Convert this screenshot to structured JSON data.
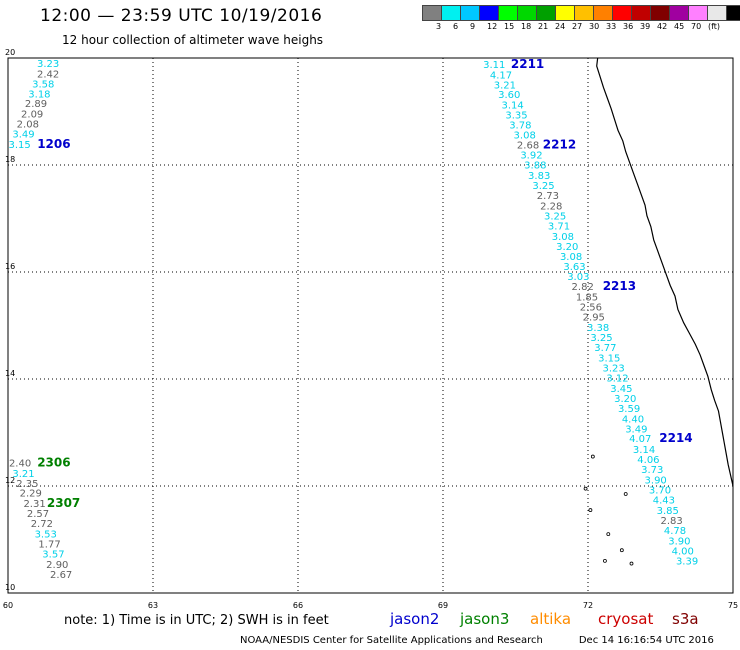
{
  "header": {
    "title": "12:00 — 23:59 UTC 10/19/2016",
    "subtitle": "12 hour collection of altimeter wave heighs"
  },
  "color_scale": {
    "colors": [
      "#808080",
      "#00f0f0",
      "#00c8ff",
      "#0000ff",
      "#00ff00",
      "#00d800",
      "#00a000",
      "#ffff00",
      "#ffc000",
      "#ff8000",
      "#ff0000",
      "#c00000",
      "#800000",
      "#a000a0",
      "#ff80ff",
      "#e8e8e8",
      "#000000"
    ],
    "labels": [
      "3",
      "6",
      "9",
      "12",
      "15",
      "18",
      "21",
      "24",
      "27",
      "30",
      "33",
      "36",
      "39",
      "42",
      "45",
      "70",
      "(ft)"
    ]
  },
  "map": {
    "x_range": [
      60,
      75
    ],
    "y_range": [
      10,
      20
    ],
    "x_ticks": [
      "60",
      "63",
      "66",
      "69",
      "72",
      "75"
    ],
    "y_ticks": [
      "20",
      "18",
      "16",
      "14",
      "12",
      "10"
    ],
    "grid_style": "dotted",
    "coastline": "black outline along right side of map"
  },
  "tracks": [
    {
      "pass": "1206",
      "satellite": "jason2",
      "pass_color": "#0000cc"
    },
    {
      "pass": "2211",
      "satellite": "jason2",
      "pass_color": "#0000cc"
    },
    {
      "pass": "2212",
      "satellite": "jason2",
      "pass_color": "#0000cc"
    },
    {
      "pass": "2213",
      "satellite": "jason2",
      "pass_color": "#0000cc"
    },
    {
      "pass": "2214",
      "satellite": "jason2",
      "pass_color": "#0000cc"
    },
    {
      "pass": "2306",
      "satellite": "jason3",
      "pass_color": "#008000"
    },
    {
      "pass": "2307",
      "satellite": "jason3",
      "pass_color": "#008000"
    }
  ],
  "wave_heights": [
    {
      "value": "3.23",
      "lon": 60.83,
      "lat": 19.83,
      "color": "#00d0e8"
    },
    {
      "value": "2.42",
      "lon": 60.83,
      "lat": 19.64,
      "color": "#606060"
    },
    {
      "value": "3.58",
      "lon": 60.73,
      "lat": 19.45,
      "color": "#00d0e8"
    },
    {
      "value": "3.18",
      "lon": 60.65,
      "lat": 19.26,
      "color": "#00d0e8"
    },
    {
      "value": "2.89",
      "lon": 60.58,
      "lat": 19.08,
      "color": "#606060"
    },
    {
      "value": "2.09",
      "lon": 60.5,
      "lat": 18.89,
      "color": "#606060"
    },
    {
      "value": "2.08",
      "lon": 60.41,
      "lat": 18.7,
      "color": "#606060"
    },
    {
      "value": "3.49",
      "lon": 60.32,
      "lat": 18.51,
      "color": "#00d0e8"
    },
    {
      "value": "3.15",
      "lon": 60.24,
      "lat": 18.32,
      "color": "#00d0e8"
    },
    {
      "value": "3.11",
      "lon": 70.06,
      "lat": 19.81,
      "color": "#00d0e8"
    },
    {
      "value": "4.17",
      "lon": 70.2,
      "lat": 19.62,
      "color": "#00d0e8"
    },
    {
      "value": "3.21",
      "lon": 70.28,
      "lat": 19.43,
      "color": "#00d0e8"
    },
    {
      "value": "3.60",
      "lon": 70.37,
      "lat": 19.25,
      "color": "#00d0e8"
    },
    {
      "value": "3.14",
      "lon": 70.44,
      "lat": 19.06,
      "color": "#00d0e8"
    },
    {
      "value": "3.35",
      "lon": 70.52,
      "lat": 18.87,
      "color": "#00d0e8"
    },
    {
      "value": "3.78",
      "lon": 70.6,
      "lat": 18.68,
      "color": "#00d0e8"
    },
    {
      "value": "3.08",
      "lon": 70.69,
      "lat": 18.5,
      "color": "#00d0e8"
    },
    {
      "value": "2.68",
      "lon": 70.76,
      "lat": 18.31,
      "color": "#606060"
    },
    {
      "value": "3.92",
      "lon": 70.83,
      "lat": 18.12,
      "color": "#00d0e8"
    },
    {
      "value": "3.88",
      "lon": 70.91,
      "lat": 17.93,
      "color": "#00d0e8"
    },
    {
      "value": "3.83",
      "lon": 70.99,
      "lat": 17.74,
      "color": "#00d0e8"
    },
    {
      "value": "3.25",
      "lon": 71.08,
      "lat": 17.55,
      "color": "#00d0e8"
    },
    {
      "value": "2.73",
      "lon": 71.17,
      "lat": 17.36,
      "color": "#606060"
    },
    {
      "value": "2.28",
      "lon": 71.24,
      "lat": 17.17,
      "color": "#606060"
    },
    {
      "value": "3.25",
      "lon": 71.32,
      "lat": 16.98,
      "color": "#00d0e8"
    },
    {
      "value": "3.71",
      "lon": 71.4,
      "lat": 16.79,
      "color": "#00d0e8"
    },
    {
      "value": "3.08",
      "lon": 71.48,
      "lat": 16.6,
      "color": "#00d0e8"
    },
    {
      "value": "3.20",
      "lon": 71.57,
      "lat": 16.41,
      "color": "#00d0e8"
    },
    {
      "value": "3.08",
      "lon": 71.65,
      "lat": 16.22,
      "color": "#00d0e8"
    },
    {
      "value": "3.63",
      "lon": 71.72,
      "lat": 16.04,
      "color": "#00d0e8"
    },
    {
      "value": "3.03",
      "lon": 71.8,
      "lat": 15.85,
      "color": "#00d0e8"
    },
    {
      "value": "2.82",
      "lon": 71.89,
      "lat": 15.66,
      "color": "#606060"
    },
    {
      "value": "1.85",
      "lon": 71.98,
      "lat": 15.47,
      "color": "#606060"
    },
    {
      "value": "2.56",
      "lon": 72.06,
      "lat": 15.28,
      "color": "#606060"
    },
    {
      "value": "2.95",
      "lon": 72.12,
      "lat": 15.09,
      "color": "#606060"
    },
    {
      "value": "3.38",
      "lon": 72.21,
      "lat": 14.9,
      "color": "#00d0e8"
    },
    {
      "value": "3.25",
      "lon": 72.28,
      "lat": 14.71,
      "color": "#00d0e8"
    },
    {
      "value": "3.77",
      "lon": 72.36,
      "lat": 14.52,
      "color": "#00d0e8"
    },
    {
      "value": "3.15",
      "lon": 72.44,
      "lat": 14.33,
      "color": "#00d0e8"
    },
    {
      "value": "3.23",
      "lon": 72.53,
      "lat": 14.14,
      "color": "#00d0e8"
    },
    {
      "value": "3.12",
      "lon": 72.61,
      "lat": 13.95,
      "color": "#00d0e8"
    },
    {
      "value": "3.45",
      "lon": 72.69,
      "lat": 13.76,
      "color": "#00d0e8"
    },
    {
      "value": "3.20",
      "lon": 72.77,
      "lat": 13.57,
      "color": "#00d0e8"
    },
    {
      "value": "3.59",
      "lon": 72.85,
      "lat": 13.38,
      "color": "#00d0e8"
    },
    {
      "value": "4.40",
      "lon": 72.93,
      "lat": 13.19,
      "color": "#00d0e8"
    },
    {
      "value": "3.49",
      "lon": 73.0,
      "lat": 13.0,
      "color": "#00d0e8"
    },
    {
      "value": "4.07",
      "lon": 73.08,
      "lat": 12.82,
      "color": "#00d0e8"
    },
    {
      "value": "3.14",
      "lon": 73.16,
      "lat": 12.62,
      "color": "#00d0e8"
    },
    {
      "value": "4.06",
      "lon": 73.25,
      "lat": 12.43,
      "color": "#00d0e8"
    },
    {
      "value": "3.73",
      "lon": 73.33,
      "lat": 12.24,
      "color": "#00d0e8"
    },
    {
      "value": "3.90",
      "lon": 73.4,
      "lat": 12.05,
      "color": "#00d0e8"
    },
    {
      "value": "3.70",
      "lon": 73.49,
      "lat": 11.86,
      "color": "#00d0e8"
    },
    {
      "value": "4.43",
      "lon": 73.57,
      "lat": 11.67,
      "color": "#00d0e8"
    },
    {
      "value": "3.85",
      "lon": 73.65,
      "lat": 11.48,
      "color": "#00d0e8"
    },
    {
      "value": "2.83",
      "lon": 73.73,
      "lat": 11.29,
      "color": "#606060"
    },
    {
      "value": "4.78",
      "lon": 73.8,
      "lat": 11.1,
      "color": "#00d0e8"
    },
    {
      "value": "3.90",
      "lon": 73.89,
      "lat": 10.91,
      "color": "#00d0e8"
    },
    {
      "value": "4.00",
      "lon": 73.96,
      "lat": 10.72,
      "color": "#00d0e8"
    },
    {
      "value": "3.39",
      "lon": 74.05,
      "lat": 10.53,
      "color": "#00d0e8"
    },
    {
      "value": "2.40",
      "lon": 60.25,
      "lat": 12.36,
      "color": "#606060"
    },
    {
      "value": "3.21",
      "lon": 60.32,
      "lat": 12.17,
      "color": "#00d0e8"
    },
    {
      "value": "2.35",
      "lon": 60.4,
      "lat": 11.98,
      "color": "#606060"
    },
    {
      "value": "2.29",
      "lon": 60.47,
      "lat": 11.8,
      "color": "#606060"
    },
    {
      "value": "2.31",
      "lon": 60.55,
      "lat": 11.61,
      "color": "#606060"
    },
    {
      "value": "2.57",
      "lon": 60.62,
      "lat": 11.42,
      "color": "#606060"
    },
    {
      "value": "2.72",
      "lon": 60.7,
      "lat": 11.23,
      "color": "#606060"
    },
    {
      "value": "3.53",
      "lon": 60.78,
      "lat": 11.04,
      "color": "#00d0e8"
    },
    {
      "value": "1.77",
      "lon": 60.86,
      "lat": 10.85,
      "color": "#606060"
    },
    {
      "value": "3.57",
      "lon": 60.94,
      "lat": 10.66,
      "color": "#00d0e8"
    },
    {
      "value": "2.90",
      "lon": 61.02,
      "lat": 10.47,
      "color": "#606060"
    },
    {
      "value": "2.67",
      "lon": 61.1,
      "lat": 10.28,
      "color": "#606060"
    }
  ],
  "pass_labels": [
    {
      "text": "1206",
      "lon": 60.95,
      "lat": 18.32,
      "color": "#0000cc"
    },
    {
      "text": "2211",
      "lon": 70.75,
      "lat": 19.81,
      "color": "#0000cc"
    },
    {
      "text": "2212",
      "lon": 71.41,
      "lat": 18.31,
      "color": "#0000cc"
    },
    {
      "text": "2213",
      "lon": 72.65,
      "lat": 15.66,
      "color": "#0000cc"
    },
    {
      "text": "2214",
      "lon": 73.82,
      "lat": 12.82,
      "color": "#0000cc"
    },
    {
      "text": "2306",
      "lon": 60.95,
      "lat": 12.36,
      "color": "#008000"
    },
    {
      "text": "2307",
      "lon": 61.15,
      "lat": 11.61,
      "color": "#008000"
    }
  ],
  "note": "note: 1) Time is in UTC; 2) SWH is in feet",
  "satellite_legend": [
    {
      "name": "jason2",
      "color": "#0000cc"
    },
    {
      "name": "jason3",
      "color": "#008000"
    },
    {
      "name": "altika",
      "color": "#ff8c00"
    },
    {
      "name": "cryosat",
      "color": "#cc0000"
    },
    {
      "name": "s3a",
      "color": "#800000"
    }
  ],
  "footer": {
    "credit": "NOAA/NESDIS Center for Satellite Applications and Research",
    "timestamp": "Dec 14 16:16:54 UTC 2016"
  }
}
